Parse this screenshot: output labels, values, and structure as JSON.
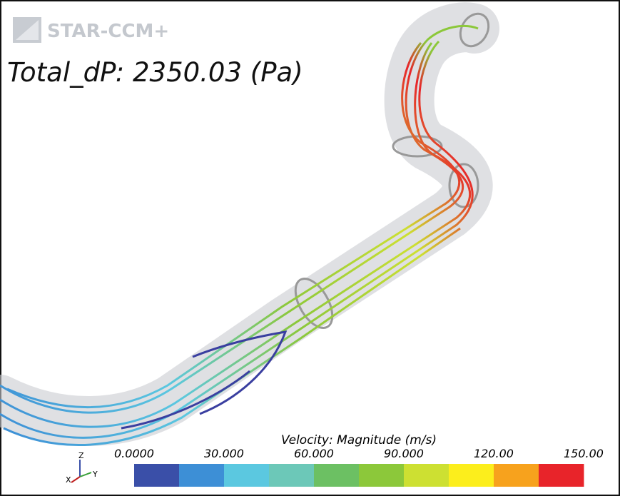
{
  "logo": "STAR-CCM+",
  "title": "Total_dP: 2350.03 (Pa)",
  "colorbar": {
    "title": "Velocity: Magnitude (m/s)",
    "ticks": [
      "0.0000",
      "30.000",
      "60.000",
      "90.000",
      "120.00",
      "150.00"
    ],
    "colors": [
      "#3a4fa8",
      "#3d8fd6",
      "#5bc8e0",
      "#6cc8b8",
      "#6cc063",
      "#8cc83a",
      "#cde032",
      "#fcee1c",
      "#f7a21d",
      "#e8242a"
    ]
  },
  "axes": {
    "z": "Z",
    "x": "X",
    "y": "Y"
  }
}
